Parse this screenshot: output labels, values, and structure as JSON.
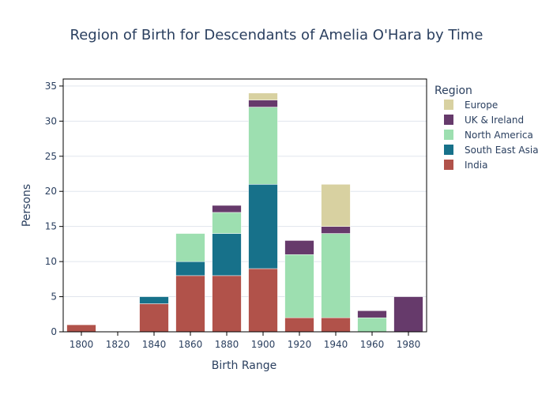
{
  "chart_data": {
    "type": "bar",
    "stacked": true,
    "title": "Region of Birth for Descendants of Amelia O'Hara by Time",
    "xlabel": "Birth Range",
    "ylabel": "Persons",
    "categories": [
      "1800",
      "1820",
      "1840",
      "1860",
      "1880",
      "1900",
      "1920",
      "1940",
      "1960",
      "1980"
    ],
    "ylim": [
      0,
      36
    ],
    "yticks": [
      0,
      5,
      10,
      15,
      20,
      25,
      30,
      35
    ],
    "grid": true,
    "legend": {
      "title": "Region",
      "position": "right"
    },
    "series": [
      {
        "name": "India",
        "color": "#b1524a",
        "values": [
          1,
          0,
          4,
          8,
          8,
          9,
          2,
          2,
          0,
          0
        ]
      },
      {
        "name": "South East Asia",
        "color": "#17718a",
        "values": [
          0,
          0,
          1,
          2,
          6,
          12,
          0,
          0,
          0,
          0
        ]
      },
      {
        "name": "North America",
        "color": "#9ddfb0",
        "values": [
          0,
          0,
          0,
          4,
          3,
          11,
          9,
          12,
          2,
          0
        ]
      },
      {
        "name": "UK & Ireland",
        "color": "#663a6b",
        "values": [
          0,
          0,
          0,
          0,
          1,
          1,
          2,
          1,
          1,
          5
        ]
      },
      {
        "name": "Europe",
        "color": "#d8d1a1",
        "values": [
          0,
          0,
          0,
          0,
          0,
          1,
          0,
          6,
          0,
          0
        ]
      }
    ]
  }
}
